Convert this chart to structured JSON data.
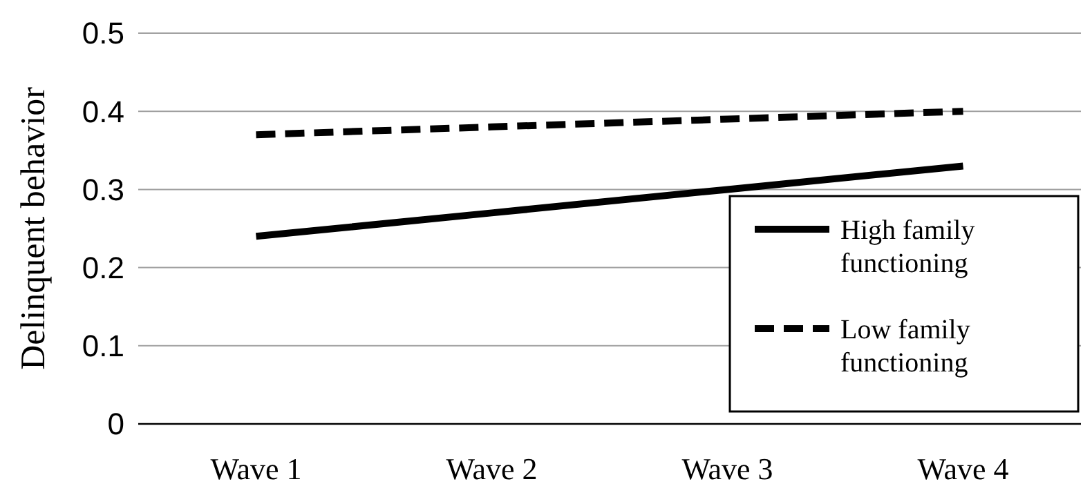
{
  "chart_data": {
    "type": "line",
    "ylabel": "Delinquent behavior",
    "categories": [
      "Wave 1",
      "Wave 2",
      "Wave 3",
      "Wave 4"
    ],
    "series": [
      {
        "name": "High family functioning",
        "color": "#000000",
        "line_style": "solid",
        "values": [
          0.24,
          0.27,
          0.3,
          0.33
        ]
      },
      {
        "name": "Low family functioning",
        "color": "#000000",
        "line_style": "dashed",
        "values": [
          0.37,
          0.38,
          0.39,
          0.4
        ]
      }
    ],
    "ylim": [
      0,
      0.5
    ],
    "yticks": [
      {
        "value": 0,
        "label": "0"
      },
      0.1,
      0.2,
      0.3,
      0.4,
      0.5
    ],
    "grid": "y",
    "legend": "bottom right",
    "marker": "none"
  }
}
